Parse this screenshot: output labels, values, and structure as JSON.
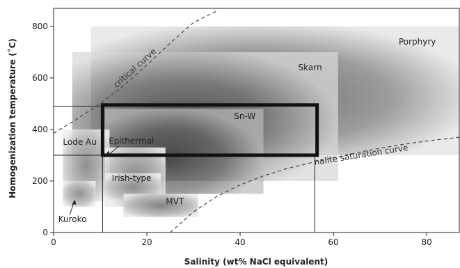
{
  "chart_data": {
    "type": "area",
    "xlabel": "Salinity (wt% NaCl equivalent)",
    "ylabel": "Homogenization temperature (˚C)",
    "xlim": [
      0,
      87
    ],
    "ylim": [
      0,
      870
    ],
    "x_ticks": [
      0,
      20,
      40,
      60,
      80
    ],
    "y_ticks": [
      0,
      200,
      400,
      600,
      800
    ],
    "fields": [
      {
        "name": "Porphyry",
        "x": [
          8,
          87
        ],
        "y": [
          300,
          800
        ]
      },
      {
        "name": "Skarn",
        "x": [
          4,
          61
        ],
        "y": [
          200,
          700
        ]
      },
      {
        "name": "Sn-W",
        "x": [
          11,
          45
        ],
        "y": [
          150,
          480
        ]
      },
      {
        "name": "Lode Au",
        "x": [
          2,
          12
        ],
        "y": [
          120,
          400
        ]
      },
      {
        "name": "Epithermal",
        "x": [
          11,
          24
        ],
        "y": [
          100,
          330
        ]
      },
      {
        "name": "Irish-type",
        "x": [
          11,
          23
        ],
        "y": [
          120,
          230
        ]
      },
      {
        "name": "MVT",
        "x": [
          15,
          31
        ],
        "y": [
          60,
          150
        ]
      },
      {
        "name": "Kuroko",
        "x": [
          2,
          9
        ],
        "y": [
          100,
          200
        ]
      }
    ],
    "highlight_box": {
      "x": [
        10.5,
        56.5
      ],
      "y": [
        300,
        495
      ]
    },
    "guide_lines": {
      "y_levels": [
        490,
        300
      ],
      "x_levels": [
        10.5,
        56
      ]
    },
    "critical_curve": {
      "label": "critical curve",
      "x": [
        0,
        5,
        10,
        15,
        20,
        25,
        30,
        35
      ],
      "y": [
        385,
        440,
        500,
        570,
        650,
        735,
        815,
        860
      ]
    },
    "halite_curve": {
      "label": "halite saturation curve",
      "x": [
        25,
        30,
        35,
        40,
        45,
        50,
        55,
        60,
        65,
        70,
        75,
        80,
        87
      ],
      "y": [
        0,
        80,
        140,
        185,
        220,
        248,
        270,
        290,
        310,
        327,
        342,
        355,
        370
      ]
    },
    "labels": {
      "Porphyry": "Porphyry",
      "Skarn": "Skarn",
      "Sn-W": "Sn-W",
      "Lode Au": "Lode Au",
      "Epithermal": "Epithermal",
      "Irish-type": "Irish-type",
      "MVT": "MVT",
      "Kuroko": "Kuroko"
    }
  }
}
